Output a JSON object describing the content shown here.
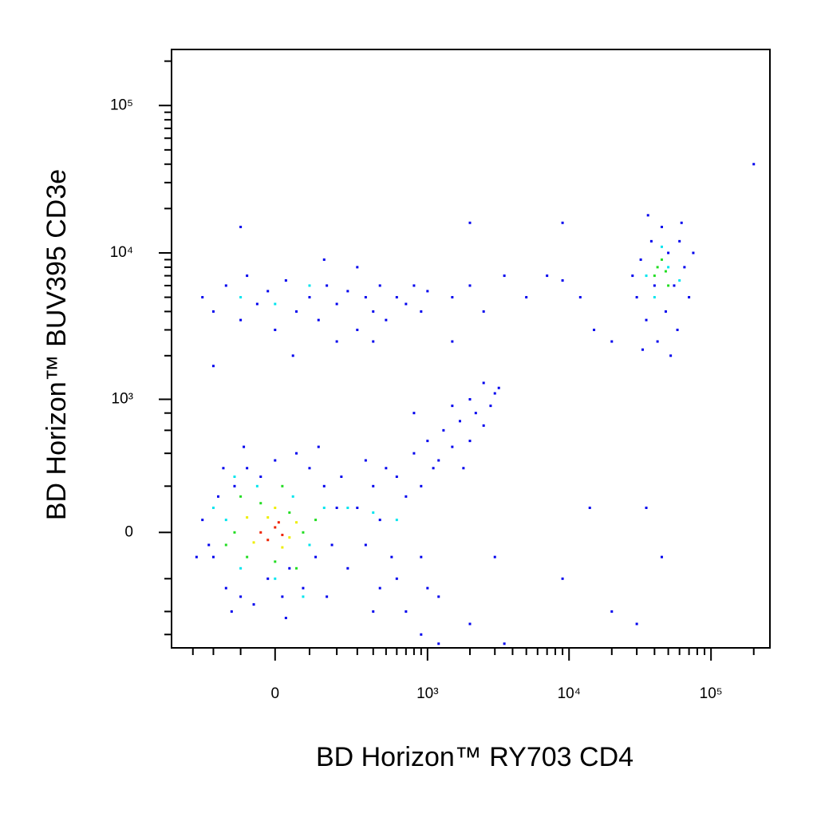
{
  "chart_data": {
    "type": "scatter",
    "x_label": "BD Horizon™ RY703 CD4",
    "y_label": "BD Horizon™ BUV395 CD3e",
    "xscale": "biexponential",
    "yscale": "biexponential",
    "xlim": [
      -440,
      260000
    ],
    "ylim": [
      -750,
      240000
    ],
    "xticks": [
      0,
      {
        "value": 1000,
        "label": "10³"
      },
      {
        "value": 10000,
        "label": "10⁴"
      },
      {
        "value": 100000,
        "label": "10⁵"
      }
    ],
    "yticks": [
      0,
      {
        "value": 1000,
        "label": "10³"
      },
      {
        "value": 10000,
        "label": "10⁴"
      },
      {
        "value": 100000,
        "label": "10⁵"
      }
    ],
    "xminor_ticks": [
      -300,
      -200,
      -100,
      100,
      200,
      300,
      400,
      500,
      600,
      700,
      800,
      900,
      2000,
      3000,
      4000,
      5000,
      6000,
      7000,
      8000,
      9000,
      20000,
      30000,
      40000,
      50000,
      60000,
      70000,
      80000,
      90000,
      200000
    ],
    "yminor_ticks": [
      -600,
      -400,
      -200,
      200,
      400,
      600,
      800,
      2000,
      3000,
      4000,
      5000,
      6000,
      7000,
      8000,
      9000,
      20000,
      30000,
      40000,
      50000,
      60000,
      70000,
      80000,
      90000,
      200000
    ],
    "series": [
      {
        "color": "#0000ee",
        "x": [
          -250,
          -200,
          -180,
          -150,
          -120,
          -100,
          -80,
          -60,
          -40,
          -20,
          0,
          20,
          40,
          60,
          80,
          100,
          120,
          150,
          180,
          200,
          -220,
          -160,
          160,
          220,
          250,
          -280,
          30,
          -90,
          130,
          -130,
          300,
          350,
          400,
          450,
          500,
          550,
          600,
          700,
          800,
          900,
          1000,
          1100,
          1200,
          1300,
          1500,
          1700,
          2000,
          2200,
          2500,
          2800,
          3000,
          2000,
          1500,
          1800,
          600,
          900,
          700,
          1200,
          450,
          350,
          2500,
          3200,
          800,
          1000,
          900,
          1200,
          3500,
          400,
          -250,
          -200,
          -150,
          -100,
          -80,
          -50,
          -20,
          0,
          30,
          60,
          100,
          130,
          160,
          200,
          250,
          300,
          350,
          400,
          450,
          500,
          600,
          700,
          800,
          900,
          1000,
          -100,
          50,
          200,
          -200,
          400,
          150,
          300,
          1500,
          2000,
          2500,
          3500,
          5000,
          7000,
          9000,
          12000,
          2000,
          9000,
          15000,
          20000,
          1500,
          30000,
          32000,
          35000,
          38000,
          40000,
          42000,
          45000,
          48000,
          50000,
          55000,
          58000,
          60000,
          65000,
          70000,
          28000,
          33000,
          52000,
          75000,
          36000,
          62000,
          200000,
          3000,
          9000,
          20000,
          45000,
          35000,
          14000,
          2000,
          30000
        ],
        "y": [
          50,
          -100,
          150,
          -250,
          200,
          -300,
          300,
          -350,
          250,
          -200,
          350,
          -300,
          -150,
          400,
          -250,
          300,
          -100,
          200,
          -50,
          100,
          -50,
          300,
          -300,
          250,
          -150,
          -100,
          -450,
          450,
          450,
          -400,
          100,
          -50,
          200,
          50,
          300,
          -100,
          250,
          150,
          400,
          200,
          500,
          300,
          350,
          600,
          450,
          700,
          500,
          800,
          650,
          900,
          1100,
          1000,
          900,
          300,
          -200,
          -100,
          -400,
          -300,
          -250,
          350,
          1300,
          1200,
          800,
          -250,
          -600,
          -700,
          -700,
          -400,
          5000,
          4000,
          6000,
          3500,
          7000,
          4500,
          5500,
          3000,
          6500,
          4000,
          5000,
          3500,
          6000,
          4500,
          5500,
          3000,
          5000,
          4000,
          6000,
          3500,
          5000,
          4500,
          6000,
          4000,
          5500,
          15000,
          2000,
          2500,
          1700,
          2500,
          9000,
          8000,
          5000,
          6000,
          4000,
          7000,
          5000,
          7000,
          6500,
          5000,
          16000,
          16000,
          3000,
          2500,
          2500,
          5000,
          9000,
          3500,
          12000,
          6000,
          2500,
          15000,
          4000,
          10000,
          6000,
          3000,
          12000,
          8000,
          5000,
          7000,
          2200,
          2000,
          10000,
          18000,
          16000,
          40000,
          -100,
          -200,
          -400,
          -100,
          100,
          100,
          -500,
          -500
        ]
      },
      {
        "color": "#00e5ee",
        "x": [
          -150,
          -100,
          -50,
          0,
          50,
          100,
          -200,
          150,
          -120,
          80,
          250,
          400,
          600,
          -100,
          0,
          100,
          40000,
          50000,
          60000,
          45000,
          35000
        ],
        "y": [
          50,
          -150,
          200,
          -200,
          150,
          -50,
          100,
          100,
          250,
          -300,
          100,
          80,
          50,
          5000,
          4500,
          6000,
          5000,
          8000,
          6500,
          11000,
          7000
        ]
      },
      {
        "color": "#22dd22",
        "x": [
          -120,
          -80,
          -40,
          0,
          40,
          80,
          -100,
          20,
          60,
          -150,
          120,
          40000,
          45000,
          50000,
          42000,
          48000
        ],
        "y": [
          0,
          -100,
          120,
          -120,
          80,
          0,
          150,
          200,
          -150,
          -50,
          50,
          7000,
          9000,
          6000,
          8000,
          7500
        ]
      },
      {
        "color": "#eeee00",
        "x": [
          -60,
          -20,
          20,
          60,
          -80,
          0,
          40
        ],
        "y": [
          -40,
          60,
          -60,
          40,
          60,
          100,
          -20
        ]
      },
      {
        "color": "#ee2200",
        "x": [
          -40,
          0,
          20,
          -20,
          10
        ],
        "y": [
          0,
          20,
          -10,
          -30,
          40
        ]
      }
    ]
  }
}
